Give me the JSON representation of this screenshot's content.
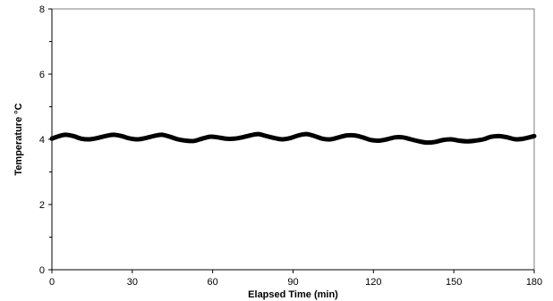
{
  "chart_data": {
    "type": "line",
    "title": "",
    "xlabel": "Elapsed Time (min)",
    "ylabel": "Temperature °C",
    "xlim": [
      0,
      180
    ],
    "ylim": [
      0,
      8
    ],
    "x_ticks": [
      0,
      30,
      60,
      90,
      120,
      150,
      180
    ],
    "y_ticks": [
      0,
      2,
      4,
      6,
      8
    ],
    "y_minor_ticks": [
      1,
      3,
      5,
      7
    ],
    "grid": false,
    "legend": "none",
    "line_color": "#000000",
    "series": [
      {
        "x": [
          0,
          2,
          5,
          8,
          11,
          14,
          17,
          20,
          23,
          26,
          29,
          32,
          35,
          38,
          41,
          44,
          47,
          50,
          53,
          56,
          59,
          62,
          65,
          68,
          71,
          74,
          77,
          80,
          83,
          86,
          89,
          92,
          95,
          98,
          101,
          104,
          107,
          110,
          113,
          116,
          119,
          122,
          125,
          128,
          131,
          134,
          137,
          140,
          143,
          146,
          149,
          152,
          155,
          158,
          161,
          164,
          167,
          170,
          173,
          176,
          180
        ],
        "values": [
          4.02,
          4.08,
          4.14,
          4.1,
          4.02,
          4.0,
          4.04,
          4.1,
          4.14,
          4.1,
          4.03,
          4.0,
          4.04,
          4.1,
          4.14,
          4.08,
          4.0,
          3.96,
          3.95,
          4.02,
          4.08,
          4.06,
          4.02,
          4.02,
          4.06,
          4.12,
          4.16,
          4.1,
          4.04,
          4.0,
          4.04,
          4.12,
          4.16,
          4.1,
          4.02,
          4.0,
          4.06,
          4.12,
          4.12,
          4.06,
          3.98,
          3.96,
          4.0,
          4.06,
          4.06,
          4.0,
          3.94,
          3.9,
          3.92,
          3.98,
          4.0,
          3.96,
          3.94,
          3.96,
          4.0,
          4.08,
          4.1,
          4.06,
          4.0,
          4.02,
          4.1
        ]
      }
    ]
  }
}
